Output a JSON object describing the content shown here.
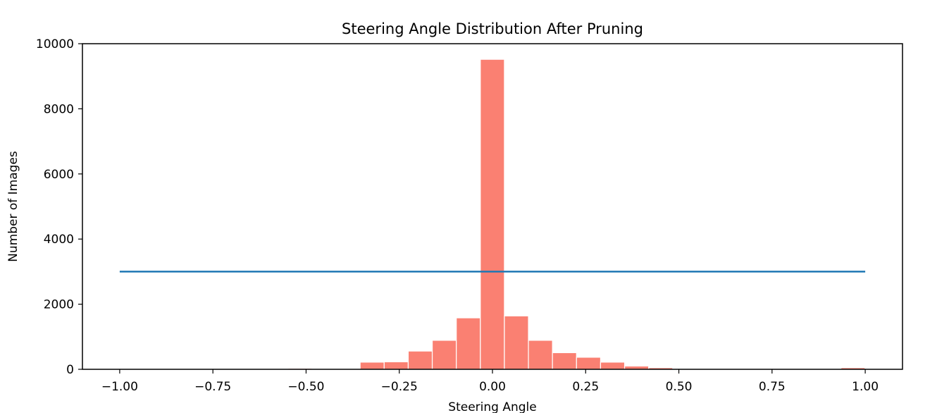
{
  "chart_data": {
    "type": "bar",
    "title": "Steering Angle Distribution After Pruning",
    "xlabel": "Steering Angle",
    "ylabel": "Number of Images",
    "xlim": [
      -1.1,
      1.1
    ],
    "ylim": [
      0,
      10000
    ],
    "x_ticks": [
      {
        "value": -1.0,
        "label": "−1.00"
      },
      {
        "value": -0.75,
        "label": "−0.75"
      },
      {
        "value": -0.5,
        "label": "−0.50"
      },
      {
        "value": -0.25,
        "label": "−0.25"
      },
      {
        "value": 0.0,
        "label": "0.00"
      },
      {
        "value": 0.25,
        "label": "0.25"
      },
      {
        "value": 0.5,
        "label": "0.50"
      },
      {
        "value": 0.75,
        "label": "0.75"
      },
      {
        "value": 1.0,
        "label": "1.00"
      }
    ],
    "y_ticks": [
      {
        "value": 0,
        "label": "0"
      },
      {
        "value": 2000,
        "label": "2000"
      },
      {
        "value": 4000,
        "label": "4000"
      },
      {
        "value": 6000,
        "label": "6000"
      },
      {
        "value": 8000,
        "label": "8000"
      },
      {
        "value": 10000,
        "label": "10000"
      }
    ],
    "bins": {
      "start": -1.0,
      "width": 0.0645,
      "counts": [
        0,
        0,
        0,
        0,
        0,
        0,
        0,
        30,
        20,
        0,
        220,
        230,
        560,
        890,
        1580,
        9520,
        1640,
        890,
        510,
        370,
        220,
        100,
        50,
        10,
        0,
        0,
        0,
        20,
        0,
        0,
        50
      ],
      "color": "#fa8072",
      "edge_color": "#ffffff"
    },
    "reference_line": {
      "x": [
        -1.0,
        1.0
      ],
      "y": 3000,
      "color": "#1f77b4"
    },
    "grid": false,
    "legend": "none"
  }
}
